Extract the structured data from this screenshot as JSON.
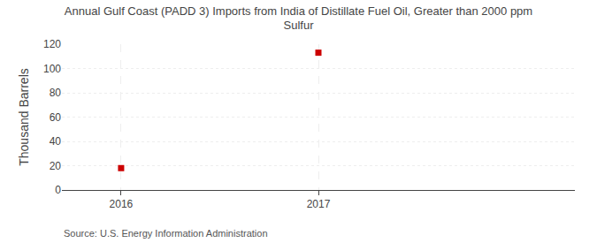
{
  "chart_data": {
    "type": "scatter",
    "title": "Annual Gulf Coast (PADD 3) Imports from India of Distillate Fuel Oil, Greater than 2000 ppm\nSulfur",
    "y_label": "Thousand Barrels",
    "annotations": [
      "Source: U.S. Energy Information Administration"
    ],
    "x": [
      2016,
      2017
    ],
    "values": [
      18,
      113
    ],
    "color": "#cc0000",
    "marker": "square",
    "xlim": [
      2015.7,
      2018.3
    ],
    "xticks": [
      2016,
      2017
    ],
    "ylim": [
      0,
      120
    ],
    "yticks": [
      0,
      20,
      40,
      60,
      80,
      100,
      120
    ],
    "grid": true
  }
}
